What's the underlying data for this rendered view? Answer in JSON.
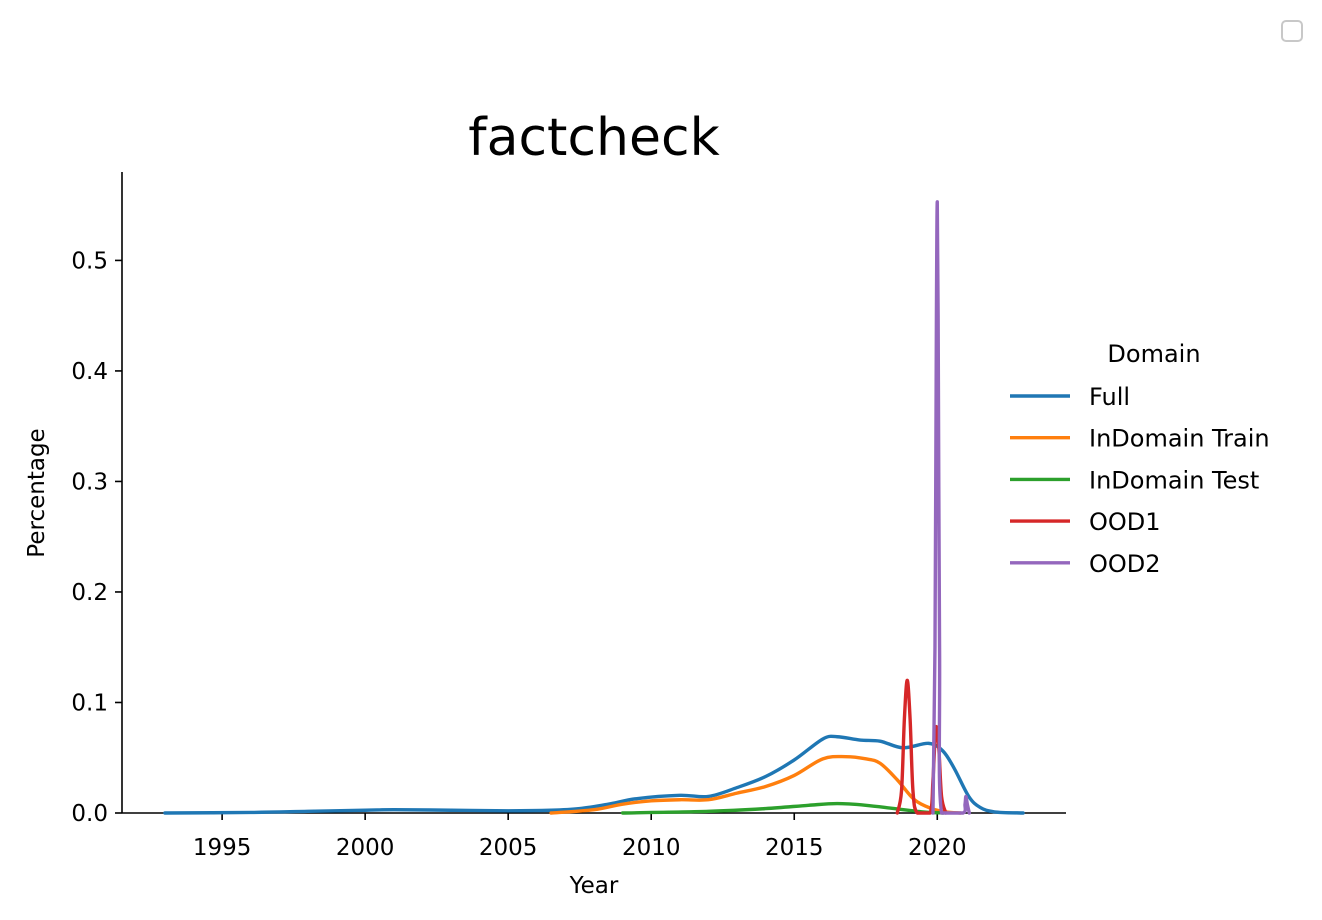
{
  "chart_data": {
    "type": "line",
    "title": "factcheck",
    "xlabel": "Year",
    "ylabel": "Percentage",
    "xlim": [
      1991.5,
      2024.5
    ],
    "ylim": [
      0.0,
      0.58
    ],
    "xticks": [
      1995,
      2000,
      2005,
      2010,
      2015,
      2020
    ],
    "yticks": [
      0.0,
      0.1,
      0.2,
      0.3,
      0.4,
      0.5
    ],
    "ytick_labels": [
      "0.0",
      "0.1",
      "0.2",
      "0.3",
      "0.4",
      "0.5"
    ],
    "grid": false,
    "legend": {
      "title": "Domain",
      "placement": "center-right, outside plot"
    },
    "series": [
      {
        "name": "Full",
        "color": "#1f77b4",
        "points": [
          [
            1993,
            0.0
          ],
          [
            1996,
            0.0005
          ],
          [
            1998,
            0.0015
          ],
          [
            2000,
            0.0025
          ],
          [
            2001,
            0.003
          ],
          [
            2003,
            0.0025
          ],
          [
            2005,
            0.002
          ],
          [
            2006.5,
            0.0025
          ],
          [
            2007.5,
            0.004
          ],
          [
            2008.5,
            0.008
          ],
          [
            2009.5,
            0.013
          ],
          [
            2011,
            0.016
          ],
          [
            2012,
            0.015
          ],
          [
            2013,
            0.023
          ],
          [
            2014,
            0.033
          ],
          [
            2015,
            0.048
          ],
          [
            2016,
            0.067
          ],
          [
            2016.5,
            0.069
          ],
          [
            2017.3,
            0.066
          ],
          [
            2018,
            0.065
          ],
          [
            2018.8,
            0.059
          ],
          [
            2019.7,
            0.063
          ],
          [
            2020.2,
            0.056
          ],
          [
            2020.6,
            0.04
          ],
          [
            2021.1,
            0.015
          ],
          [
            2021.5,
            0.005
          ],
          [
            2022,
            0.001
          ],
          [
            2023,
            0.0
          ]
        ]
      },
      {
        "name": "InDomain Train",
        "color": "#ff7f0e",
        "points": [
          [
            2006.5,
            0.0
          ],
          [
            2008,
            0.003
          ],
          [
            2009,
            0.008
          ],
          [
            2010,
            0.011
          ],
          [
            2011,
            0.012
          ],
          [
            2012,
            0.012
          ],
          [
            2013,
            0.018
          ],
          [
            2014,
            0.024
          ],
          [
            2015,
            0.034
          ],
          [
            2016,
            0.049
          ],
          [
            2016.8,
            0.051
          ],
          [
            2017.5,
            0.049
          ],
          [
            2018,
            0.045
          ],
          [
            2018.6,
            0.03
          ],
          [
            2019.2,
            0.012
          ],
          [
            2019.8,
            0.004
          ],
          [
            2020.3,
            0.001
          ],
          [
            2020.8,
            0.0
          ]
        ]
      },
      {
        "name": "InDomain Test",
        "color": "#2ca02c",
        "points": [
          [
            2009,
            0.0
          ],
          [
            2012,
            0.0015
          ],
          [
            2014,
            0.004
          ],
          [
            2015.5,
            0.007
          ],
          [
            2016.5,
            0.0085
          ],
          [
            2017.5,
            0.007
          ],
          [
            2018.5,
            0.004
          ],
          [
            2019.5,
            0.001
          ],
          [
            2020.2,
            0.0
          ]
        ]
      },
      {
        "name": "OOD1",
        "color": "#d62728",
        "points": [
          [
            2018.6,
            0.0
          ],
          [
            2018.75,
            0.02
          ],
          [
            2018.85,
            0.085
          ],
          [
            2018.95,
            0.12
          ],
          [
            2019.05,
            0.085
          ],
          [
            2019.15,
            0.02
          ],
          [
            2019.3,
            0.0
          ],
          [
            2019.75,
            0.0
          ],
          [
            2019.85,
            0.03
          ],
          [
            2019.95,
            0.077
          ],
          [
            2020.05,
            0.06
          ],
          [
            2020.15,
            0.015
          ],
          [
            2020.3,
            0.0
          ]
        ]
      },
      {
        "name": "OOD2",
        "color": "#9467bd",
        "points": [
          [
            2019.85,
            0.0
          ],
          [
            2019.92,
            0.15
          ],
          [
            2019.97,
            0.45
          ],
          [
            2020.0,
            0.553
          ],
          [
            2020.03,
            0.45
          ],
          [
            2020.08,
            0.15
          ],
          [
            2020.15,
            0.0
          ],
          [
            2020.9,
            0.0
          ],
          [
            2020.97,
            0.008
          ],
          [
            2021.0,
            0.015
          ],
          [
            2021.05,
            0.008
          ],
          [
            2021.12,
            0.0
          ]
        ]
      }
    ]
  }
}
